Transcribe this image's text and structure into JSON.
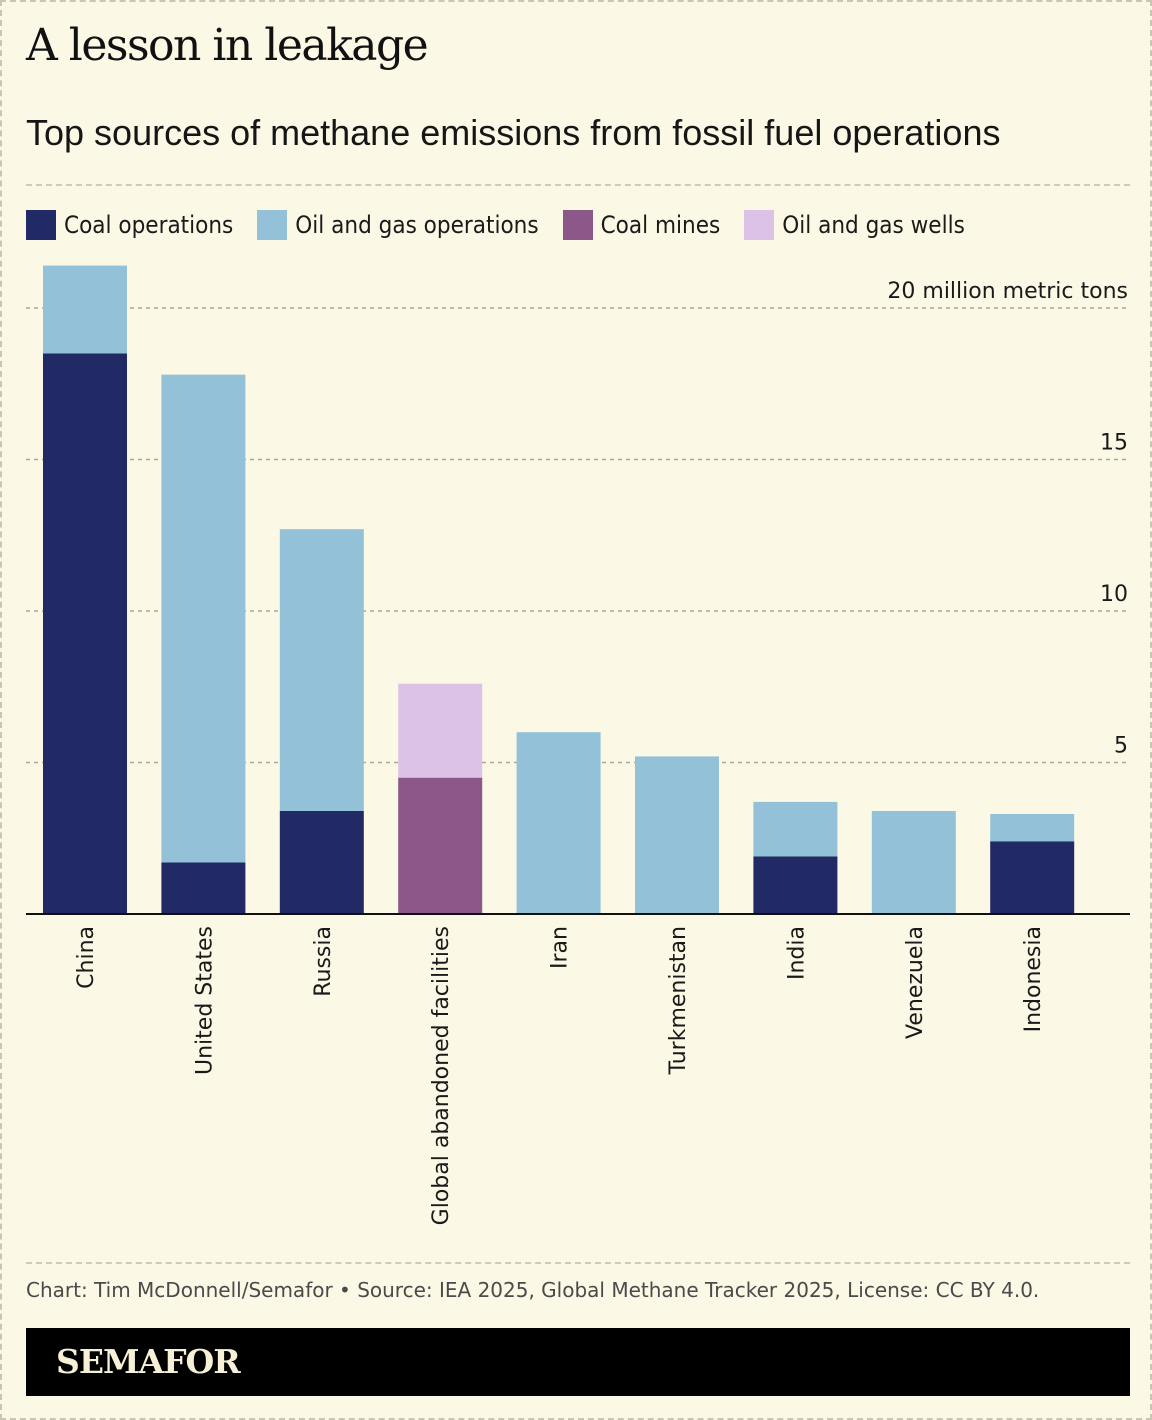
{
  "headline": "A lesson in leakage",
  "subtitle": "Top sources of methane emissions from fossil fuel operations",
  "legend": [
    {
      "label": "Coal operations",
      "color": "#212a65"
    },
    {
      "label": "Oil and gas operations",
      "color": "#92c1d8"
    },
    {
      "label": "Coal mines",
      "color": "#8c5789"
    },
    {
      "label": "Oil and gas wells",
      "color": "#dbc2e6"
    }
  ],
  "chart_data": {
    "type": "bar",
    "stacked": true,
    "title": "Top sources of methane emissions from fossil fuel operations",
    "ylabel": "20 million metric tons",
    "ylim": [
      0,
      20
    ],
    "yticks": [
      {
        "value": 5,
        "label": "5"
      },
      {
        "value": 10,
        "label": "10"
      },
      {
        "value": 15,
        "label": "15"
      },
      {
        "value": 20,
        "label": "20 million metric tons"
      }
    ],
    "categories": [
      "China",
      "United States",
      "Russia",
      "Global abandoned facilities",
      "Iran",
      "Turkmenistan",
      "India",
      "Venezuela",
      "Indonesia"
    ],
    "series": [
      {
        "name": "Coal operations",
        "color": "#212a65",
        "values": [
          18.5,
          1.7,
          3.4,
          0,
          0,
          0,
          1.9,
          0,
          2.4
        ]
      },
      {
        "name": "Coal mines",
        "color": "#8c5789",
        "values": [
          0,
          0,
          0,
          4.5,
          0,
          0,
          0,
          0,
          0
        ]
      },
      {
        "name": "Oil and gas operations",
        "color": "#92c1d8",
        "values": [
          2.9,
          16.1,
          9.3,
          0,
          6.0,
          5.2,
          1.8,
          3.4,
          0.9
        ]
      },
      {
        "name": "Oil and gas wells",
        "color": "#dbc2e6",
        "values": [
          0,
          0,
          0,
          3.1,
          0,
          0,
          0,
          0,
          0
        ]
      }
    ]
  },
  "footer": {
    "source": "Chart: Tim McDonnell/Semafor • Source: IEA 2025, Global Methane Tracker 2025, License: CC BY 4.0.",
    "brand": "SEMAFOR"
  }
}
